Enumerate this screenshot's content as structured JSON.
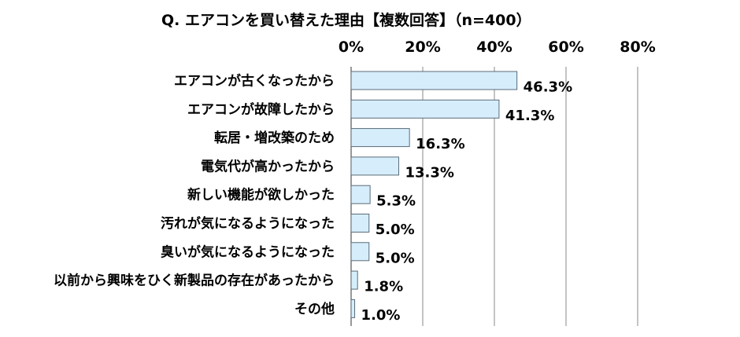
{
  "chart_data": {
    "type": "bar",
    "orientation": "horizontal",
    "title": "Q. エアコンを買い替えた理由【複数回答】（n=400）",
    "categories": [
      "エアコンが古くなったから",
      "エアコンが故障したから",
      "転居・増改築のため",
      "電気代が高かったから",
      "新しい機能が欲しかった",
      "汚れが気になるようになった",
      "臭いが気になるようになった",
      "以前から興味をひく新製品の存在があったから",
      "その他"
    ],
    "values": [
      46.3,
      41.3,
      16.3,
      13.3,
      5.3,
      5.0,
      5.0,
      1.8,
      1.0
    ],
    "value_labels": [
      "46.3%",
      "41.3%",
      "16.3%",
      "13.3%",
      "5.3%",
      "5.0%",
      "5.0%",
      "1.8%",
      "1.0%"
    ],
    "xlim": [
      0,
      80
    ],
    "xticks": [
      0,
      20,
      40,
      60,
      80
    ],
    "xtick_labels": [
      "0%",
      "20%",
      "40%",
      "60%",
      "80%"
    ],
    "x_axis_position": "top",
    "grid": true,
    "legend": "none",
    "colors": {
      "bar_fill": "#d6eefc",
      "bar_stroke": "#5a6b78",
      "grid": "#8a8a8a"
    }
  }
}
